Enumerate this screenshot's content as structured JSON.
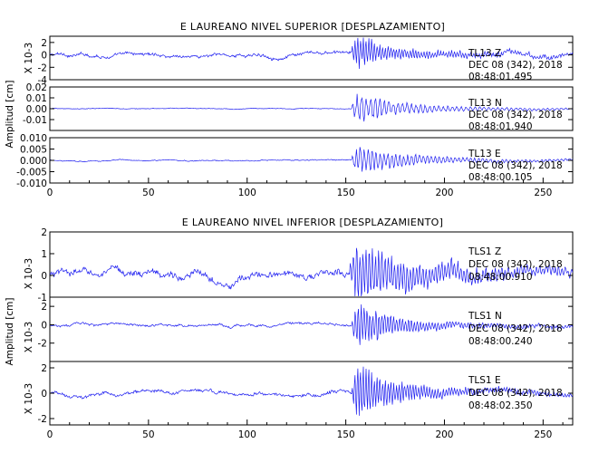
{
  "colors": {
    "trace": "#1e1ef0",
    "axes": "#000000",
    "background": "#ffffff"
  },
  "chart_data": [
    {
      "type": "line",
      "title": "E LAUREANO NIVEL SUPERIOR [DESPLAZAMIENTO]",
      "ylabel": "Amplitud [cm]",
      "xlim": [
        0,
        265
      ],
      "x_ticks": [
        "0",
        "50",
        "100",
        "150",
        "200",
        "250"
      ],
      "panels": [
        {
          "station": "TL13 Z",
          "date": "DEC 08 (342), 2018",
          "time": "08:48:01.495",
          "scale_label": "X 10-3",
          "ylim": [
            -4,
            3
          ],
          "y_ticks": [
            "2",
            "0",
            "-2",
            "-4"
          ],
          "onset": 153,
          "noise": 0.5,
          "peak": 3.0,
          "decay": 12,
          "peak_width": 11,
          "period": 1.4,
          "coda": 0.8
        },
        {
          "station": "TL13 N",
          "date": "DEC 08 (342), 2018",
          "time": "08:48:01.940",
          "scale_label": "",
          "ylim": [
            -0.02,
            0.02
          ],
          "y_ticks": [
            "0.02",
            "0.01",
            "0.00",
            "-0.01"
          ],
          "onset": 153,
          "noise": 0.0006,
          "peak": 0.014,
          "decay": 18,
          "peak_width": 12,
          "period": 2.3,
          "coda": 0.003
        },
        {
          "station": "TL13 E",
          "date": "DEC 08 (342), 2018",
          "time": "08:48:00.105",
          "scale_label": "",
          "ylim": [
            -0.01,
            0.01
          ],
          "y_ticks": [
            "0.010",
            "0.005",
            "0.000",
            "-0.005",
            "-0.010"
          ],
          "onset": 153,
          "noise": 0.0004,
          "peak": 0.007,
          "decay": 20,
          "peak_width": 12,
          "period": 2.0,
          "coda": 0.0015
        }
      ]
    },
    {
      "type": "line",
      "title": "E LAUREANO NIVEL INFERIOR [DESPLAZAMIENTO]",
      "ylabel": "Amplitud [cm]",
      "xlim": [
        0,
        265
      ],
      "x_ticks": [
        "0",
        "50",
        "100",
        "150",
        "200",
        "250"
      ],
      "panels": [
        {
          "station": "TLS1 Z",
          "date": "DEC 08 (342), 2018",
          "time": "08:48:00.910",
          "scale_label": "X 10-3",
          "ylim": [
            -1,
            2
          ],
          "y_ticks": [
            "2",
            "1",
            "0",
            "-1"
          ],
          "onset": 152,
          "noise": 0.3,
          "peak": 1.4,
          "decay": 22,
          "peak_width": 14,
          "period": 1.6,
          "coda": 0.45
        },
        {
          "station": "TLS1 N",
          "date": "DEC 08 (342), 2018",
          "time": "08:48:00.240",
          "scale_label": "X 10-3",
          "ylim": [
            -4,
            3
          ],
          "y_ticks": [
            "2",
            "0",
            "-2"
          ],
          "onset": 153,
          "noise": 0.25,
          "peak": 3.0,
          "decay": 14,
          "peak_width": 10,
          "period": 1.5,
          "coda": 0.6
        },
        {
          "station": "TLS1 E",
          "date": "DEC 08 (342), 2018",
          "time": "08:48:02.350",
          "scale_label": "X 10-3",
          "ylim": [
            -2.5,
            2.5
          ],
          "y_ticks": [
            "2",
            "0",
            "-2"
          ],
          "onset": 153,
          "noise": 0.25,
          "peak": 2.4,
          "decay": 14,
          "peak_width": 10,
          "period": 1.4,
          "coda": 0.55
        }
      ]
    }
  ]
}
